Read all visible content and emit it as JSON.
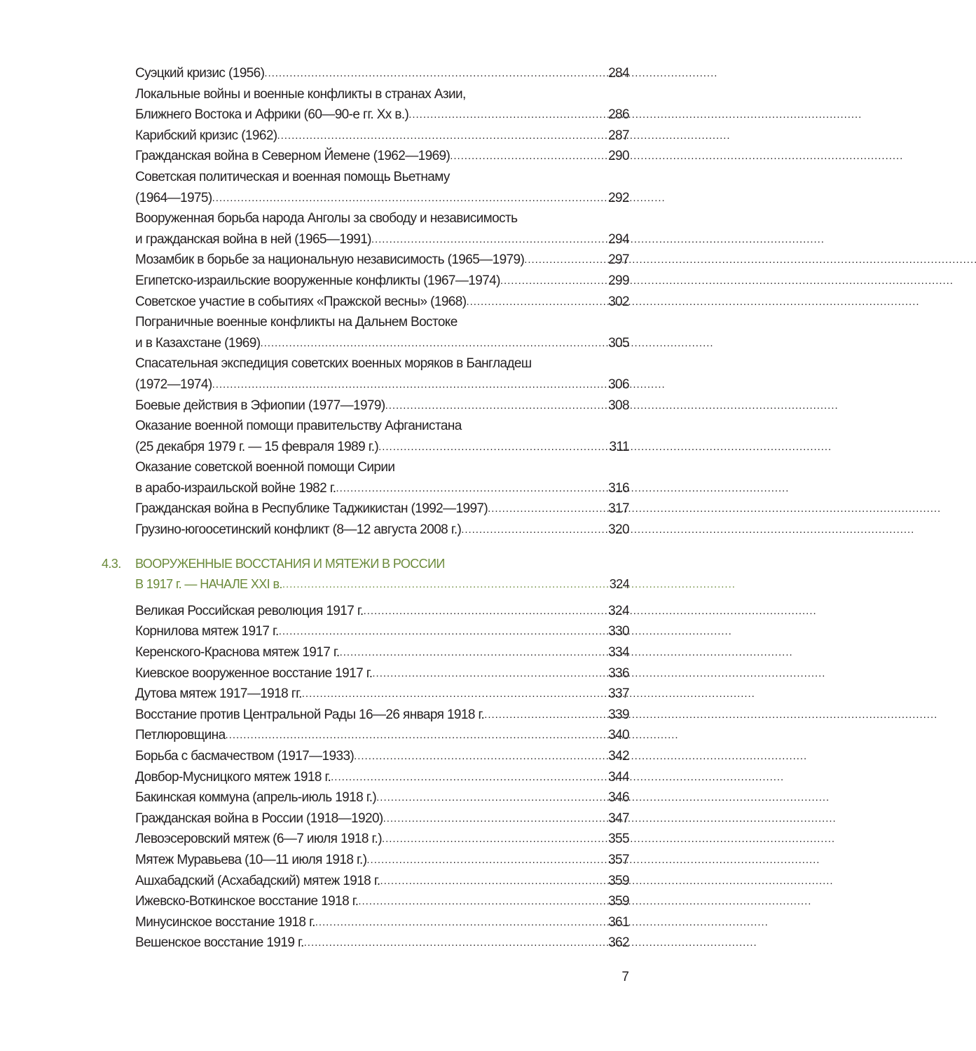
{
  "entries_before": [
    {
      "lines": [
        "Суэцкий кризис (1956)"
      ],
      "page": "284"
    },
    {
      "lines": [
        "Локальные войны и военные конфликты в странах Азии,",
        "Ближнего Востока и Африки (60—90-е гг. Хх в.)"
      ],
      "page": "286"
    },
    {
      "lines": [
        "Карибский кризис (1962)"
      ],
      "page": "287"
    },
    {
      "lines": [
        "Гражданская война в Северном Йемене (1962—1969)"
      ],
      "page": "290"
    },
    {
      "lines": [
        "Советская политическая и военная помощь Вьетнаму",
        "(1964—1975)"
      ],
      "page": "292"
    },
    {
      "lines": [
        "Вооруженная борьба народа Анголы за свободу и независимость",
        "и гражданская война в ней (1965—1991)"
      ],
      "page": "294"
    },
    {
      "lines": [
        "Мозамбик в борьбе за национальную независимость (1965—1979)"
      ],
      "page": "297"
    },
    {
      "lines": [
        "Египетско-израильские вооруженные конфликты (1967—1974)"
      ],
      "page": "299"
    },
    {
      "lines": [
        "Советское участие в событиях «Пражской весны» (1968)"
      ],
      "page": "302"
    },
    {
      "lines": [
        "Пограничные военные конфликты на Дальнем Востоке",
        "и в Казахстане (1969)"
      ],
      "page": "305"
    },
    {
      "lines": [
        "Спасательная экспедиция советских военных моряков в Бангладеш",
        "(1972—1974)"
      ],
      "page": "306"
    },
    {
      "lines": [
        "Боевые действия в Эфиопии (1977—1979)"
      ],
      "page": "308"
    },
    {
      "lines": [
        "Оказание военной помощи правительству Афганистана",
        "(25 декабря 1979 г. — 15 февраля 1989 г.)"
      ],
      "page": "311"
    },
    {
      "lines": [
        "Оказание советской военной помощи Сирии",
        "в арабо-израильской войне 1982 г."
      ],
      "page": "316"
    },
    {
      "lines": [
        "Гражданская война в Республике Таджикистан (1992—1997)"
      ],
      "page": "317"
    },
    {
      "lines": [
        "Грузино-югоосетинский конфликт (8—12 августа 2008 г.)"
      ],
      "page": "320"
    }
  ],
  "section": {
    "number": "4.3.",
    "lines": [
      "ВООРУЖЕННЫЕ ВОССТАНИЯ И МЯТЕЖИ В РОССИИ",
      "В 1917 г. — НАЧАЛЕ XXI в."
    ],
    "page": "324",
    "color": "#6b8a3a"
  },
  "entries_after": [
    {
      "lines": [
        "Великая Российская революция 1917 г."
      ],
      "page": "324"
    },
    {
      "lines": [
        "Корнилова мятеж 1917 г."
      ],
      "page": "330"
    },
    {
      "lines": [
        "Керенского-Краснова мятеж 1917 г."
      ],
      "page": "334"
    },
    {
      "lines": [
        "Киевское вооруженное восстание 1917 г."
      ],
      "page": "336"
    },
    {
      "lines": [
        "Дутова мятеж 1917—1918 гг."
      ],
      "page": "337"
    },
    {
      "lines": [
        "Восстание против Центральной Рады 16—26 января 1918 г."
      ],
      "page": "339"
    },
    {
      "lines": [
        "Петлюровщина"
      ],
      "page": "340"
    },
    {
      "lines": [
        "Борьба с басмачеством (1917—1933)"
      ],
      "page": "342"
    },
    {
      "lines": [
        "Довбор-Мусницкого мятеж 1918 г."
      ],
      "page": "344"
    },
    {
      "lines": [
        "Бакинская коммуна (апрель-июль 1918 г.)"
      ],
      "page": "346"
    },
    {
      "lines": [
        "Гражданская война в России (1918—1920)"
      ],
      "page": "347"
    },
    {
      "lines": [
        "Левоэсеровский мятеж (6—7 июля 1918 г.)"
      ],
      "page": "355"
    },
    {
      "lines": [
        "Мятеж Муравьева (10—11 июля 1918 г.)"
      ],
      "page": "357"
    },
    {
      "lines": [
        "Ашхабадский (Асхабадский) мятеж 1918 г."
      ],
      "page": "359"
    },
    {
      "lines": [
        "Ижевско-Воткинское восстание 1918 г."
      ],
      "page": "359"
    },
    {
      "lines": [
        "Минусинское восстание 1918 г."
      ],
      "page": "361"
    },
    {
      "lines": [
        "Вешенское восстание 1919 г."
      ],
      "page": "362"
    }
  ],
  "page_number": "7"
}
